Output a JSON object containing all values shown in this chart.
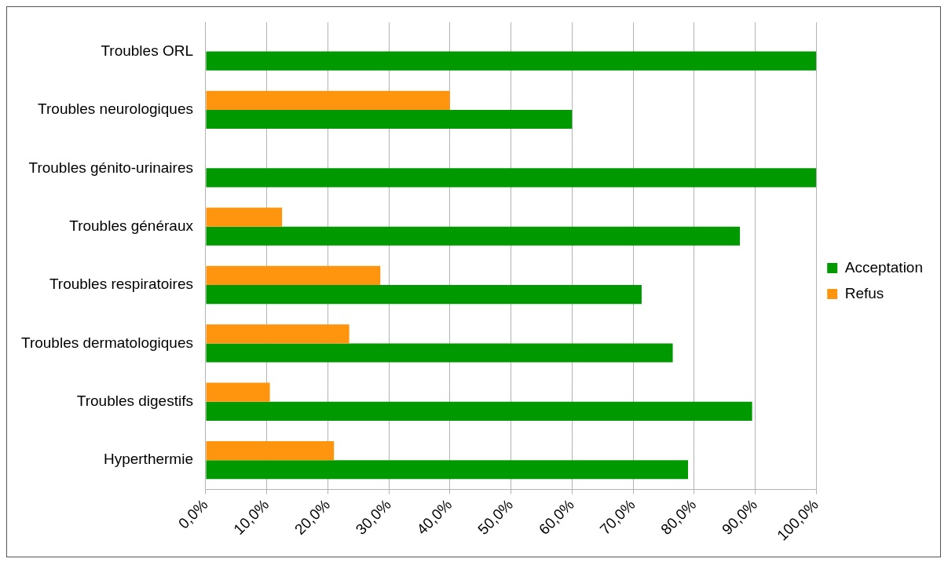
{
  "chart_data": {
    "type": "bar",
    "orientation": "horizontal",
    "categories": [
      "Troubles ORL",
      "Troubles neurologiques",
      "Troubles génito-urinaires",
      "Troubles généraux",
      "Troubles respiratoires",
      "Troubles dermatologiques",
      "Troubles digestifs",
      "Hyperthermie"
    ],
    "series": [
      {
        "name": "Refus",
        "color": "#ff950e",
        "values": [
          0,
          40,
          0,
          12.5,
          28.6,
          23.5,
          10.5,
          21
        ]
      },
      {
        "name": "Acceptation",
        "color": "#009900",
        "values": [
          100,
          60,
          100,
          87.5,
          71.4,
          76.5,
          89.5,
          79
        ]
      }
    ],
    "xlim": [
      0,
      100
    ],
    "xticks": [
      {
        "value": 0,
        "label": "0,0%"
      },
      {
        "value": 10,
        "label": "10,0%"
      },
      {
        "value": 20,
        "label": "20,0%"
      },
      {
        "value": 30,
        "label": "30,0%"
      },
      {
        "value": 40,
        "label": "40,0%"
      },
      {
        "value": 50,
        "label": "50,0%"
      },
      {
        "value": 60,
        "label": "60,0%"
      },
      {
        "value": 70,
        "label": "70,0%"
      },
      {
        "value": 80,
        "label": "80,0%"
      },
      {
        "value": 90,
        "label": "90,0%"
      },
      {
        "value": 100,
        "label": "100,0%"
      }
    ],
    "grid": "x",
    "legend": "right"
  }
}
